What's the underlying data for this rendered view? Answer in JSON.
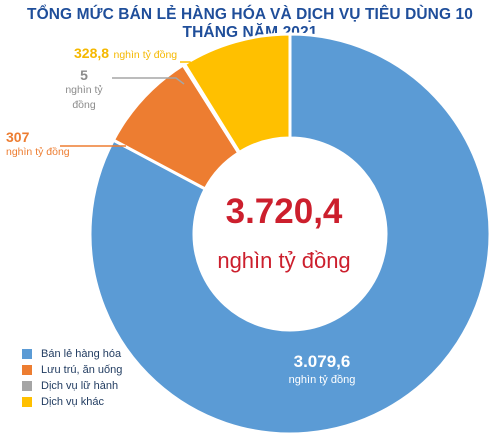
{
  "colors": {
    "title": "#1f4e9a",
    "total": "#cc1f2d",
    "legend_text": "#1f3a5f"
  },
  "chart_data": {
    "type": "pie",
    "title": "TỔNG MỨC BÁN LẺ HÀNG HÓA VÀ DỊCH VỤ TIÊU DÙNG 10 THÁNG NĂM 2021",
    "total": "3.720,4",
    "total_unit": "nghìn tỷ đồng",
    "unit": "nghìn tỷ đồng",
    "legend_position": "bottom-left",
    "slices": [
      {
        "name": "Bán lẻ hàng hóa",
        "value": 3079.6,
        "label": "3.079,6",
        "color": "#5b9bd5"
      },
      {
        "name": "Lưu trú, ăn uống",
        "value": 307,
        "label": "307",
        "color": "#ed7d31"
      },
      {
        "name": "Dịch vụ lữ hành",
        "value": 5,
        "label": "5",
        "color": "#a5a5a5"
      },
      {
        "name": "Dịch vụ khác",
        "value": 328.8,
        "label": "328,8",
        "color": "#ffc000"
      }
    ]
  }
}
